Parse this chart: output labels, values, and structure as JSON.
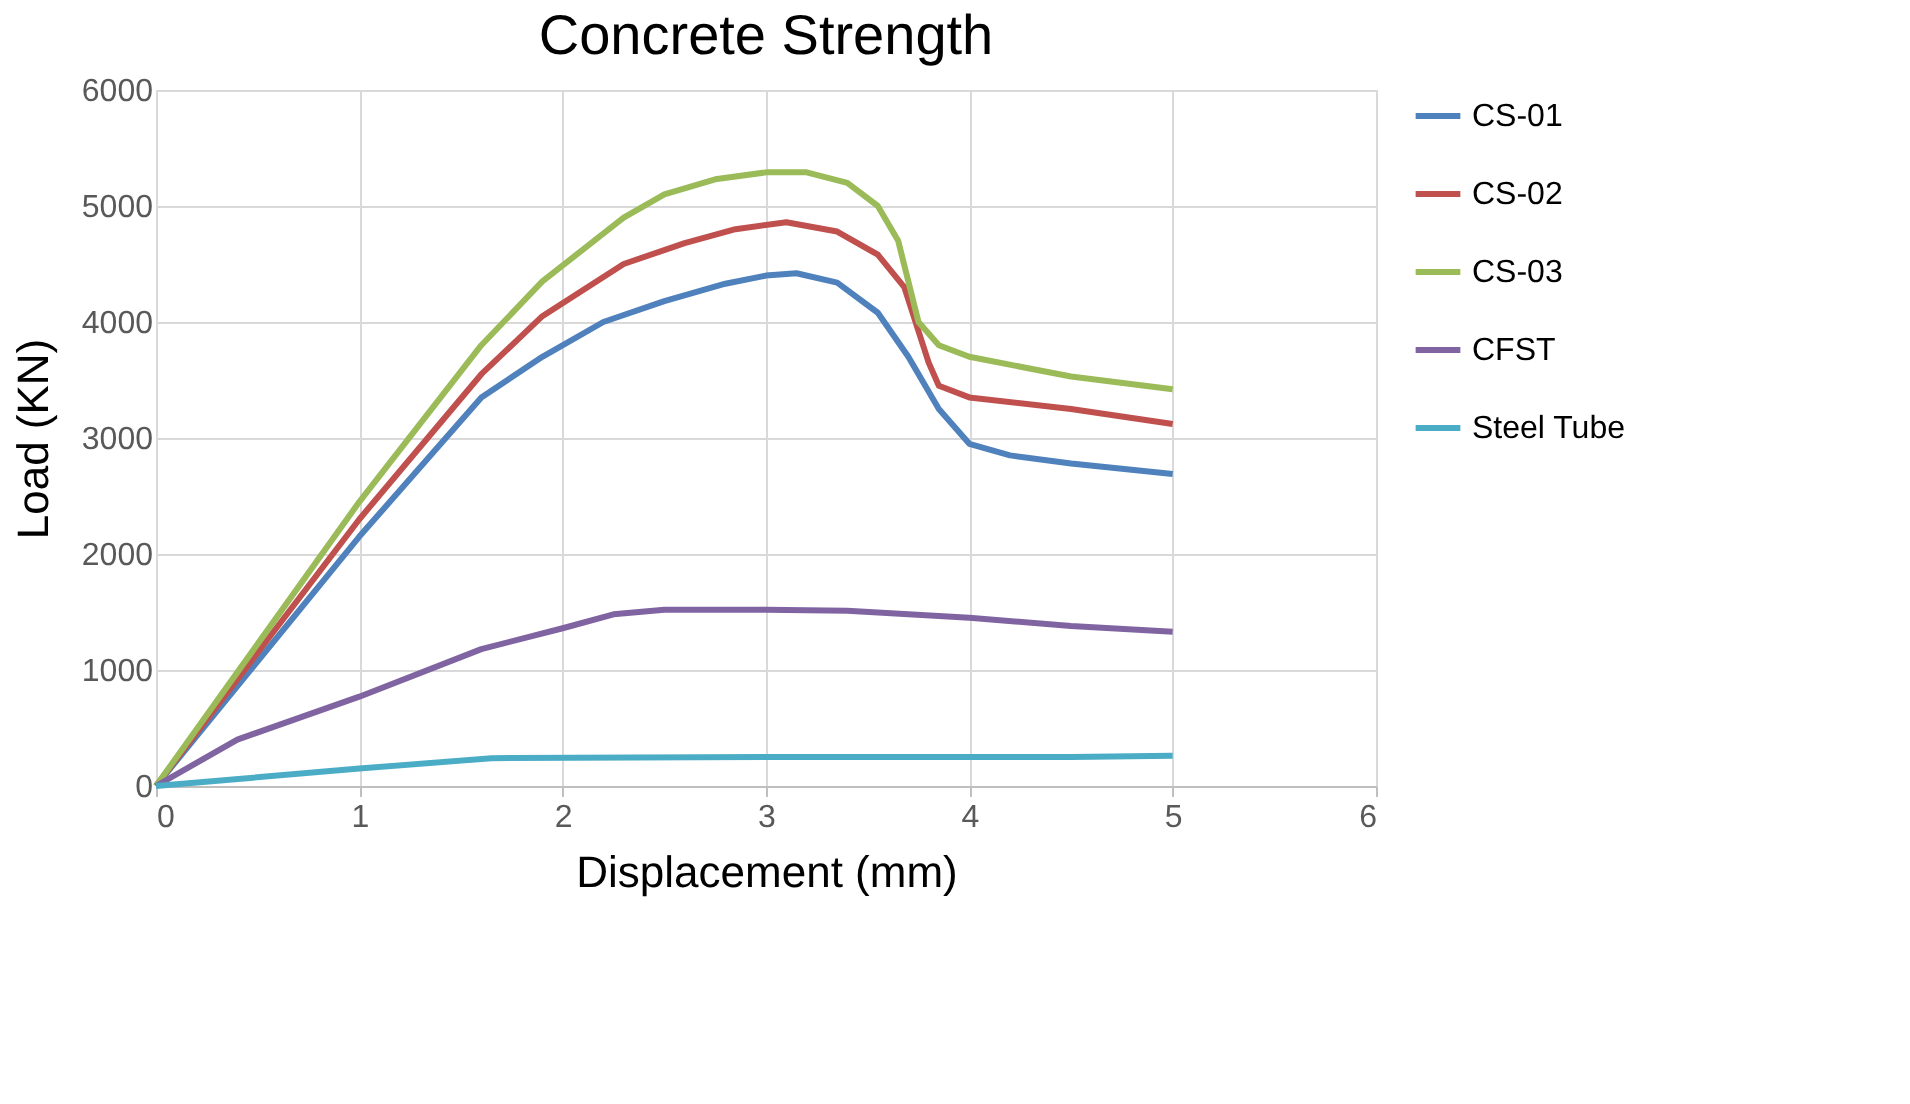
{
  "chart_data": {
    "type": "line",
    "title": "Concrete Strength",
    "xlabel": "Displacement (mm)",
    "ylabel": "Load (KN)",
    "xlim": [
      0,
      6
    ],
    "xticks": [
      0,
      1,
      2,
      3,
      4,
      5,
      6
    ],
    "ylim": [
      0,
      6000
    ],
    "yticks": [
      0,
      1000,
      2000,
      3000,
      4000,
      5000,
      6000
    ],
    "grid": true,
    "legend": "right",
    "marker": "none",
    "line_style": "solid",
    "series": [
      {
        "name": "CS-01",
        "color": "#4f81bd",
        "x": [
          0,
          1,
          1.6,
          1.9,
          2.2,
          2.5,
          2.8,
          3.0,
          3.15,
          3.35,
          3.55,
          3.7,
          3.85,
          4.0,
          4.2,
          4.5,
          5.0
        ],
        "values": [
          0,
          2150,
          3350,
          3700,
          4000,
          4180,
          4330,
          4400,
          4420,
          4340,
          4080,
          3700,
          3250,
          2950,
          2850,
          2780,
          2690
        ]
      },
      {
        "name": "CS-02",
        "color": "#c0504d",
        "x": [
          0,
          1,
          1.6,
          1.9,
          2.3,
          2.6,
          2.85,
          3.1,
          3.35,
          3.55,
          3.68,
          3.8,
          3.85,
          4.0,
          4.5,
          5.0
        ],
        "values": [
          0,
          2300,
          3550,
          4050,
          4500,
          4680,
          4800,
          4860,
          4780,
          4580,
          4300,
          3650,
          3450,
          3350,
          3250,
          3120
        ]
      },
      {
        "name": "CS-03",
        "color": "#9bbb59",
        "x": [
          0,
          1,
          1.6,
          1.9,
          2.3,
          2.5,
          2.75,
          3.0,
          3.2,
          3.4,
          3.55,
          3.65,
          3.75,
          3.85,
          4.0,
          4.5,
          5.0
        ],
        "values": [
          0,
          2450,
          3800,
          4350,
          4900,
          5100,
          5230,
          5290,
          5290,
          5200,
          5000,
          4700,
          4000,
          3800,
          3700,
          3530,
          3420
        ]
      },
      {
        "name": "CFST",
        "color": "#8064a2",
        "x": [
          0,
          0.4,
          1,
          1.6,
          2.0,
          2.25,
          2.5,
          3.0,
          3.4,
          4.0,
          4.5,
          5.0
        ],
        "values": [
          0,
          400,
          770,
          1180,
          1360,
          1480,
          1520,
          1520,
          1510,
          1450,
          1380,
          1330
        ]
      },
      {
        "name": "Steel Tube",
        "color": "#4bacc6",
        "x": [
          0,
          1,
          1.65,
          3,
          4.5,
          5
        ],
        "values": [
          0,
          150,
          240,
          250,
          250,
          260
        ]
      }
    ]
  }
}
